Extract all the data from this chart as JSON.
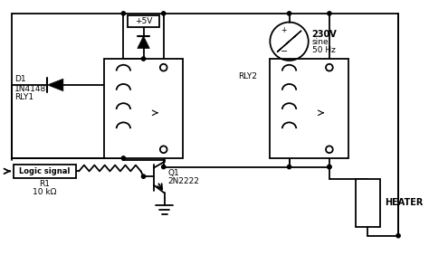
{
  "bg_color": "#ffffff",
  "line_color": "#000000",
  "line_width": 1.3,
  "labels": {
    "plus5v": "+5V",
    "d1": "D1",
    "d1_part": "1N4148",
    "rly1": "RLY1",
    "rly2": "RLY2",
    "logic_signal": "Logic signal",
    "r1": "R1",
    "r1_val": "10 kΩ",
    "q1": "Q1",
    "q1_part": "2N2222",
    "ac_volt": "230V",
    "ac_sine": "sine",
    "ac_freq": "50 Hz",
    "heater": "HEATER"
  },
  "font_size": 6.5
}
